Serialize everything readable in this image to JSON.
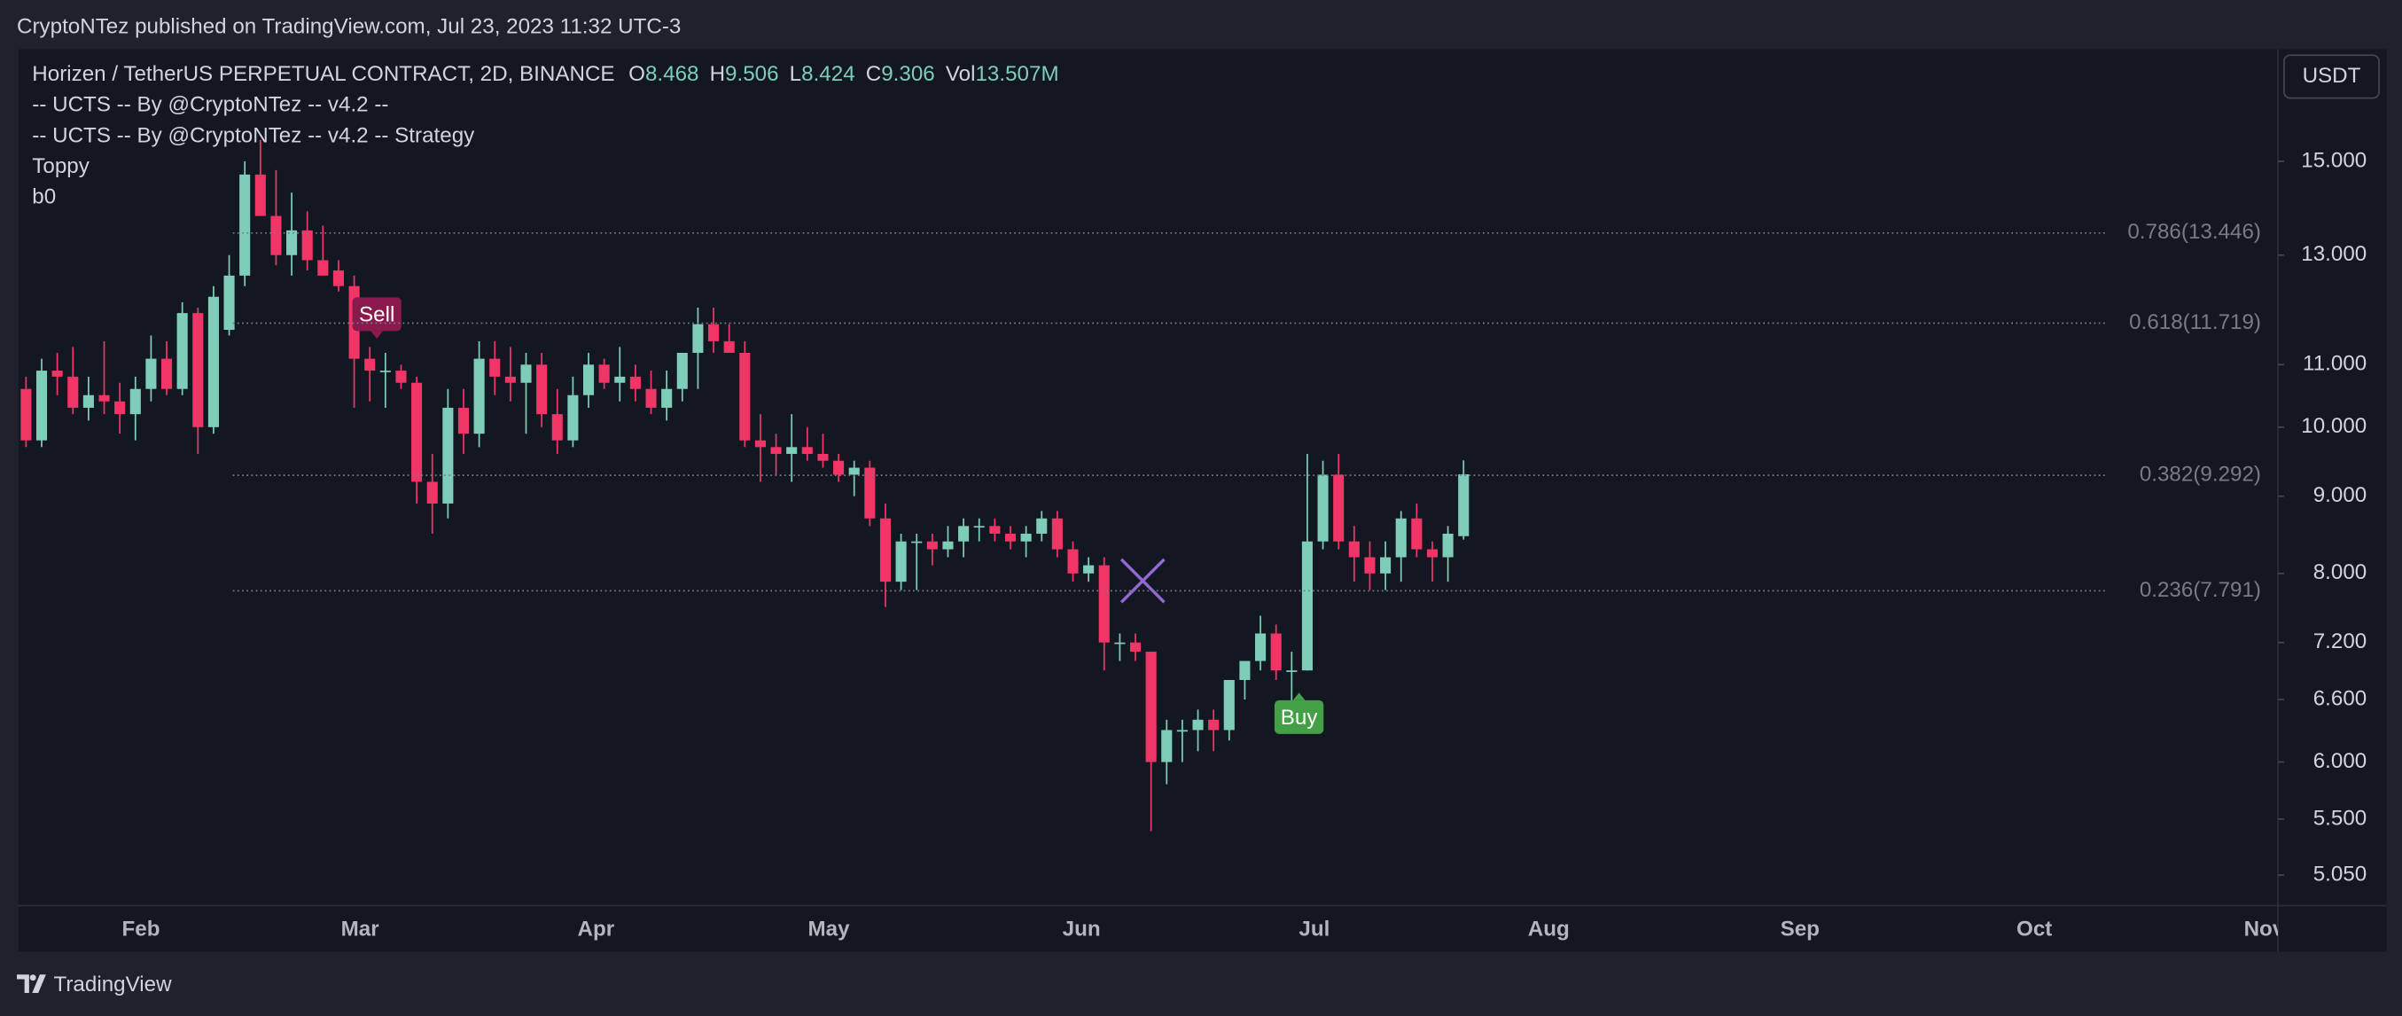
{
  "header": {
    "text": "CryptoNTez published on TradingView.com, Jul 23, 2023 11:32 UTC-3"
  },
  "chart_data": {
    "type": "candlestick",
    "title": "Horizen / TetherUS PERPETUAL CONTRACT, 2D, BINANCE",
    "legend_fields": [
      {
        "name": "O",
        "value": 8.468
      },
      {
        "name": "H",
        "value": 9.506
      },
      {
        "name": "L",
        "value": 8.424
      },
      {
        "name": "C",
        "value": 9.306
      },
      {
        "name": "Vol",
        "value": 13507000,
        "value_label": "13.507M"
      }
    ],
    "indicators": [
      "-- UCTS -- By @CryptoNTez -- v4.2 --",
      "-- UCTS -- By @CryptoNTez -- v4.2 -- Strategy",
      "Toppy",
      "b0"
    ],
    "currency": "USDT",
    "months": [
      "Feb",
      "Mar",
      "Apr",
      "May",
      "Jun",
      "Jul",
      "Aug",
      "Sep",
      "Oct",
      "Nov"
    ],
    "log_scale": true,
    "ylim": [
      4.82,
      17.8
    ],
    "yticks": [
      {
        "value": 5.05,
        "label": "5.050"
      },
      {
        "value": 5.5,
        "label": "5.500"
      },
      {
        "value": 6,
        "label": "6.000"
      },
      {
        "value": 6.6,
        "label": "6.600"
      },
      {
        "value": 7.2,
        "label": "7.200"
      },
      {
        "value": 8,
        "label": "8.000"
      },
      {
        "value": 9,
        "label": "9.000"
      },
      {
        "value": 10,
        "label": "10.000"
      },
      {
        "value": 11,
        "label": "11.000"
      },
      {
        "value": 13,
        "label": "13.000"
      },
      {
        "value": 15,
        "label": "15.000"
      }
    ],
    "up_color": "#7ecdb8",
    "down_color": "#f23567",
    "fib_levels": [
      {
        "value": 13.446,
        "label": "0.786(13.446)"
      },
      {
        "value": 11.719,
        "label": "0.618(11.719)"
      },
      {
        "value": 9.292,
        "label": "0.382(9.292)"
      },
      {
        "value": 7.791,
        "label": "0.236(7.791)"
      }
    ],
    "signals": [
      {
        "label": "Sell",
        "color": "#8a1a4e"
      },
      {
        "label": "Buy",
        "color": "#43a047"
      }
    ],
    "candles": [
      [
        10.6,
        10.8,
        9.7,
        9.8
      ],
      [
        9.8,
        11.1,
        9.7,
        10.9
      ],
      [
        10.9,
        11.2,
        10.5,
        10.8
      ],
      [
        10.8,
        11.3,
        10.2,
        10.3
      ],
      [
        10.3,
        10.8,
        10.1,
        10.5
      ],
      [
        10.5,
        11.4,
        10.2,
        10.4
      ],
      [
        10.4,
        10.7,
        9.9,
        10.2
      ],
      [
        10.2,
        10.8,
        9.8,
        10.6
      ],
      [
        10.6,
        11.5,
        10.4,
        11.1
      ],
      [
        11.1,
        11.4,
        10.5,
        10.6
      ],
      [
        10.6,
        12.1,
        10.5,
        11.9
      ],
      [
        11.9,
        12.0,
        9.6,
        10.0
      ],
      [
        10.0,
        12.4,
        9.9,
        12.2
      ],
      [
        11.6,
        13.0,
        11.5,
        12.6
      ],
      [
        12.6,
        15.0,
        12.4,
        14.7
      ],
      [
        14.7,
        15.5,
        13.8,
        13.8
      ],
      [
        13.8,
        14.8,
        12.8,
        13.0
      ],
      [
        13.0,
        14.3,
        12.6,
        13.5
      ],
      [
        13.5,
        13.9,
        12.7,
        12.9
      ],
      [
        12.9,
        13.6,
        12.6,
        12.6
      ],
      [
        12.7,
        12.9,
        12.3,
        12.4
      ],
      [
        12.4,
        12.6,
        10.3,
        11.1
      ],
      [
        11.1,
        11.3,
        10.4,
        10.9
      ],
      [
        10.9,
        11.2,
        10.3,
        10.9
      ],
      [
        10.9,
        11.0,
        10.6,
        10.7
      ],
      [
        10.7,
        10.8,
        8.9,
        9.2
      ],
      [
        9.2,
        9.6,
        8.5,
        8.9
      ],
      [
        8.9,
        10.6,
        8.7,
        10.3
      ],
      [
        10.3,
        10.6,
        9.6,
        9.9
      ],
      [
        9.9,
        11.4,
        9.7,
        11.1
      ],
      [
        11.1,
        11.4,
        10.5,
        10.8
      ],
      [
        10.8,
        11.3,
        10.4,
        10.7
      ],
      [
        10.7,
        11.2,
        9.9,
        11.0
      ],
      [
        11.0,
        11.2,
        10.0,
        10.2
      ],
      [
        10.2,
        10.6,
        9.6,
        9.8
      ],
      [
        9.8,
        10.8,
        9.7,
        10.5
      ],
      [
        10.5,
        11.2,
        10.3,
        11.0
      ],
      [
        11.0,
        11.1,
        10.6,
        10.7
      ],
      [
        10.7,
        11.3,
        10.4,
        10.8
      ],
      [
        10.8,
        11.0,
        10.4,
        10.6
      ],
      [
        10.6,
        10.9,
        10.2,
        10.3
      ],
      [
        10.3,
        10.9,
        10.1,
        10.6
      ],
      [
        10.6,
        11.2,
        10.4,
        11.2
      ],
      [
        11.2,
        12.0,
        10.6,
        11.7
      ],
      [
        11.7,
        12.0,
        11.2,
        11.4
      ],
      [
        11.4,
        11.7,
        11.2,
        11.2
      ],
      [
        11.2,
        11.4,
        9.7,
        9.8
      ],
      [
        9.8,
        10.2,
        9.2,
        9.7
      ],
      [
        9.7,
        9.9,
        9.3,
        9.6
      ],
      [
        9.6,
        10.2,
        9.2,
        9.7
      ],
      [
        9.7,
        10.0,
        9.5,
        9.6
      ],
      [
        9.6,
        9.9,
        9.4,
        9.5
      ],
      [
        9.5,
        9.6,
        9.2,
        9.3
      ],
      [
        9.3,
        9.5,
        9.0,
        9.4
      ],
      [
        9.4,
        9.5,
        8.6,
        8.7
      ],
      [
        8.7,
        8.9,
        7.6,
        7.9
      ],
      [
        7.9,
        8.5,
        7.8,
        8.4
      ],
      [
        8.4,
        8.5,
        7.8,
        8.4
      ],
      [
        8.4,
        8.5,
        8.1,
        8.3
      ],
      [
        8.3,
        8.6,
        8.2,
        8.4
      ],
      [
        8.4,
        8.7,
        8.2,
        8.6
      ],
      [
        8.6,
        8.7,
        8.4,
        8.6
      ],
      [
        8.6,
        8.7,
        8.4,
        8.5
      ],
      [
        8.5,
        8.6,
        8.3,
        8.4
      ],
      [
        8.4,
        8.6,
        8.2,
        8.5
      ],
      [
        8.5,
        8.8,
        8.4,
        8.7
      ],
      [
        8.7,
        8.8,
        8.2,
        8.3
      ],
      [
        8.3,
        8.4,
        7.9,
        8.0
      ],
      [
        8.0,
        8.2,
        7.9,
        8.1
      ],
      [
        8.1,
        8.2,
        6.9,
        7.2
      ],
      [
        7.2,
        7.3,
        7.0,
        7.2
      ],
      [
        7.2,
        7.3,
        7.0,
        7.1
      ],
      [
        7.1,
        7.1,
        5.4,
        6.0
      ],
      [
        6.0,
        6.4,
        5.8,
        6.3
      ],
      [
        6.3,
        6.4,
        6.0,
        6.3
      ],
      [
        6.3,
        6.5,
        6.1,
        6.4
      ],
      [
        6.4,
        6.5,
        6.1,
        6.3
      ],
      [
        6.3,
        6.8,
        6.2,
        6.8
      ],
      [
        6.8,
        7.0,
        6.6,
        7.0
      ],
      [
        7.0,
        7.5,
        6.9,
        7.3
      ],
      [
        7.3,
        7.4,
        6.8,
        6.9
      ],
      [
        6.9,
        7.1,
        6.5,
        6.9
      ],
      [
        6.9,
        9.6,
        6.9,
        8.4
      ],
      [
        8.4,
        9.5,
        8.3,
        9.3
      ],
      [
        9.3,
        9.6,
        8.3,
        8.4
      ],
      [
        8.4,
        8.6,
        7.9,
        8.2
      ],
      [
        8.2,
        8.4,
        7.8,
        8.0
      ],
      [
        8.0,
        8.4,
        7.8,
        8.2
      ],
      [
        8.2,
        8.8,
        7.9,
        8.7
      ],
      [
        8.7,
        8.9,
        8.2,
        8.3
      ],
      [
        8.3,
        8.4,
        7.9,
        8.2
      ],
      [
        8.2,
        8.6,
        7.9,
        8.5
      ],
      [
        8.468,
        9.506,
        8.424,
        9.306
      ]
    ]
  },
  "footer": {
    "brand": "TradingView"
  }
}
